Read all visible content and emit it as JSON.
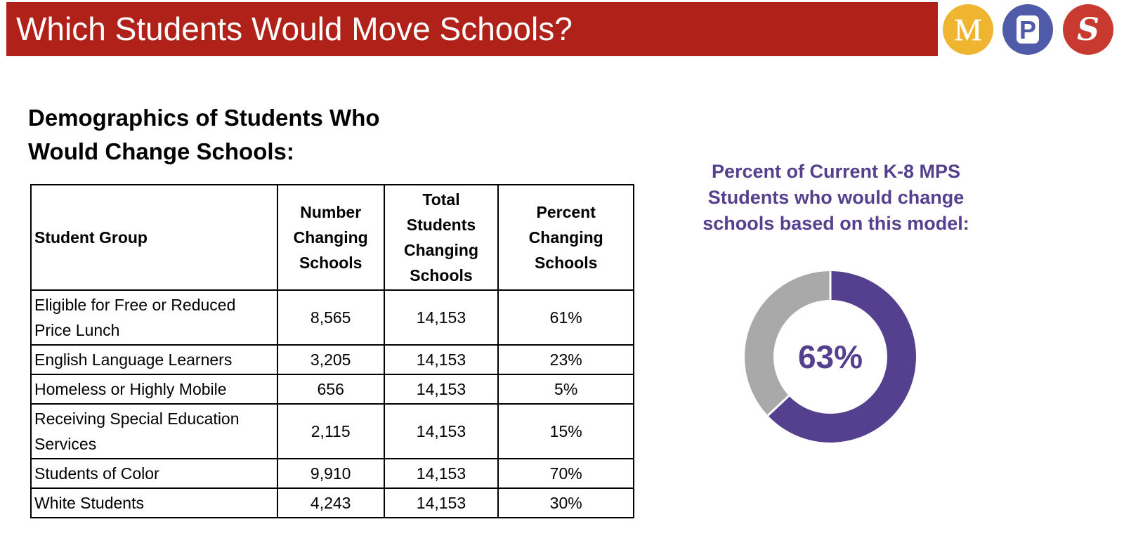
{
  "header": {
    "title": "Which Students Would Move Schools?"
  },
  "logos": [
    {
      "letter": "M",
      "color": "#EFB531",
      "icon": "letter-m-logo"
    },
    {
      "letter": "P",
      "color": "#4F5BA8",
      "icon": "letter-p-logo"
    },
    {
      "letter": "S",
      "color": "#C8392F",
      "icon": "letter-s-logo"
    }
  ],
  "section": {
    "heading_line1": "Demographics of Students Who",
    "heading_line2": "Would Change Schools:"
  },
  "table": {
    "columns": [
      "Student Group",
      "Number Changing Schools",
      "Total Students Changing Schools",
      "Percent Changing Schools"
    ],
    "rows": [
      [
        "Eligible for Free or Reduced Price Lunch",
        "8,565",
        "14,153",
        "61%"
      ],
      [
        "English Language Learners",
        "3,205",
        "14,153",
        "23%"
      ],
      [
        "Homeless or Highly Mobile",
        "656",
        "14,153",
        "5%"
      ],
      [
        "Receiving Special Education Services",
        "2,115",
        "14,153",
        "15%"
      ],
      [
        "Students of Color",
        "9,910",
        "14,153",
        "70%"
      ],
      [
        "White Students",
        "4,243",
        "14,153",
        "30%"
      ]
    ]
  },
  "donut": {
    "title": "Percent of Current K-8 MPS Students who would change schools based on this model:",
    "center_label": "63%",
    "colors": {
      "accent": "#55408F",
      "rest": "#A9A9A9",
      "title": "#55408F",
      "header_bg": "#B0211A"
    }
  },
  "chart_data": {
    "type": "pie",
    "variant": "donut",
    "title": "Percent of Current K-8 MPS Students who would change schools based on this model:",
    "values": [
      63,
      37
    ],
    "colors": [
      "#55408F",
      "#A9A9A9"
    ],
    "center_label": "63%"
  }
}
